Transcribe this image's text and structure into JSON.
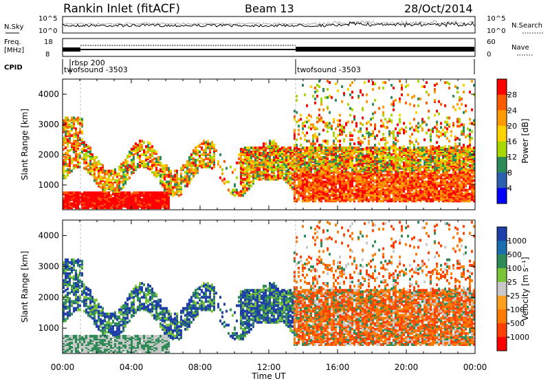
{
  "header": {
    "title": "Rankin Inlet (fitACF)",
    "beam": "Beam 13",
    "date": "28/Oct/2014"
  },
  "top_panels": {
    "nsky_label": "N.Sky",
    "nsearch_label": "N.Search",
    "nsky_ticks": [
      "10^5",
      "10^0"
    ],
    "nsearch_ticks": [
      "10^5",
      "10^0"
    ],
    "freq_label_1": "Freq.",
    "freq_label_2": "[MHz]",
    "freq_ticks": [
      "18",
      "8"
    ],
    "nave_label": "Nave",
    "nave_ticks": [
      "60",
      "0"
    ],
    "cpid_label": "CPID",
    "cpid_segments": [
      {
        "label": "twofsound -3503",
        "start_hour": 0.0,
        "end_hour": 13.4
      },
      {
        "label": "rbsp 200",
        "start_hour": 1.1,
        "end_hour": 13.4
      },
      {
        "label": "twofsound -3503",
        "start_hour": 13.4,
        "end_hour": 24.0
      }
    ]
  },
  "power_colorbar": {
    "label": "Power [dB]",
    "ticks": [
      "28",
      "24",
      "20",
      "16",
      "12",
      "8",
      "4"
    ],
    "colors": [
      "#ff0000",
      "#ff5a00",
      "#ff9a00",
      "#ffd200",
      "#a8d800",
      "#2e8b57",
      "#2d5fb0",
      "#0000ff"
    ]
  },
  "velocity_colorbar": {
    "label": "Velocity [m s⁻¹]",
    "ticks": [
      "1000",
      "500",
      "100",
      "25",
      "-25",
      "-100",
      "-500",
      "-1000"
    ],
    "colors": [
      "#1e3fa8",
      "#1c6fae",
      "#2e8b57",
      "#7ac43a",
      "#c8c8c8",
      "#ffa020",
      "#ff7a00",
      "#ff4000",
      "#ff0000"
    ]
  },
  "chart_data": [
    {
      "type": "heatmap",
      "title": "Power",
      "ylabel": "Slant Range [km]",
      "xlabel": "Time UT",
      "x_ticks": [
        "00:00",
        "04:00",
        "08:00",
        "12:00",
        "16:00",
        "20:00",
        "00:00"
      ],
      "y_ticks": [
        1000,
        2000,
        3000,
        4000
      ],
      "xlim": [
        0,
        24
      ],
      "ylim": [
        180,
        4500
      ],
      "colorbar": "power_colorbar"
    },
    {
      "type": "heatmap",
      "title": "Velocity",
      "ylabel": "Slant Range [km]",
      "xlabel": "Time UT",
      "x_ticks": [
        "00:00",
        "04:00",
        "08:00",
        "12:00",
        "16:00",
        "20:00",
        "00:00"
      ],
      "y_ticks": [
        1000,
        2000,
        3000,
        4000
      ],
      "xlim": [
        0,
        24
      ],
      "ylim": [
        180,
        4500
      ],
      "colorbar": "velocity_colorbar"
    }
  ]
}
